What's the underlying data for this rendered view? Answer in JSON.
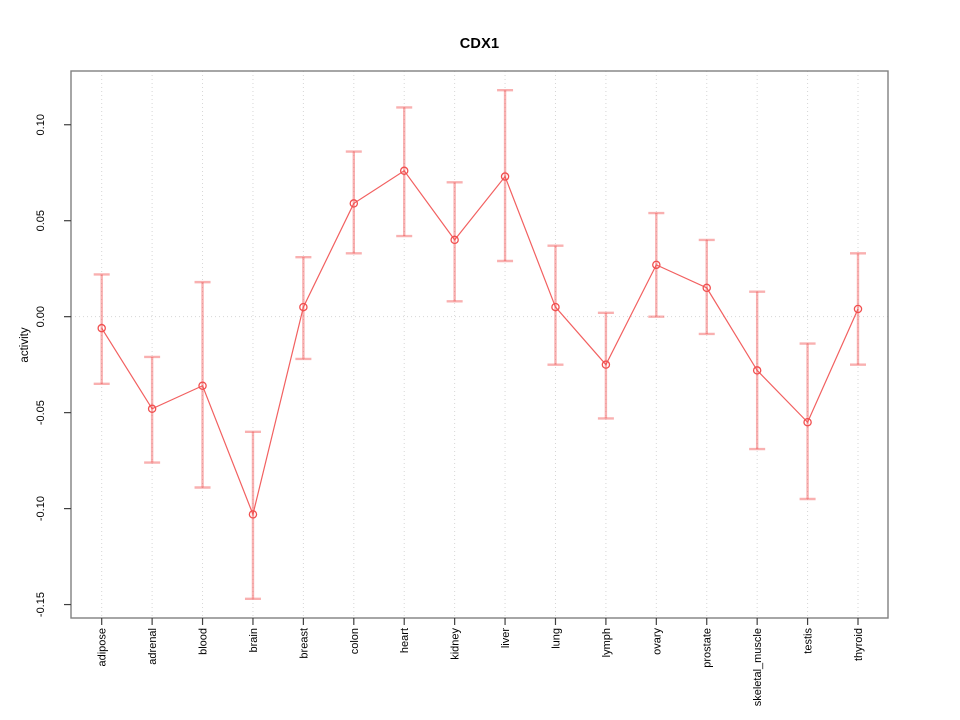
{
  "title": "CDX1",
  "chart_data": {
    "type": "line",
    "error_bars": true,
    "title": "CDX1",
    "xlabel": "",
    "ylabel": "activity",
    "legend": "none",
    "grid": "vertical dotted gridline at each category; horizontal dotted gridline at y=0",
    "categories": [
      "adipose",
      "adrenal",
      "blood",
      "brain",
      "breast",
      "colon",
      "heart",
      "kidney",
      "liver",
      "lung",
      "lymph",
      "ovary",
      "prostate",
      "skeletal_muscle",
      "testis",
      "thyroid"
    ],
    "series": [
      {
        "name": "activity",
        "values": [
          -0.006,
          -0.048,
          -0.036,
          -0.103,
          0.005,
          0.059,
          0.076,
          0.04,
          0.073,
          0.005,
          -0.025,
          0.027,
          0.015,
          -0.028,
          -0.055,
          0.004
        ],
        "lower": [
          -0.035,
          -0.076,
          -0.089,
          -0.147,
          -0.022,
          0.033,
          0.042,
          0.008,
          0.029,
          -0.025,
          -0.053,
          0.0,
          -0.009,
          -0.069,
          -0.095,
          -0.025
        ],
        "upper": [
          0.022,
          -0.021,
          0.018,
          -0.06,
          0.031,
          0.086,
          0.109,
          0.07,
          0.118,
          0.037,
          0.002,
          0.054,
          0.04,
          0.013,
          -0.014,
          0.033
        ]
      }
    ],
    "ytick_values": [
      0.1,
      0.05,
      0.0,
      -0.05,
      -0.1,
      -0.15
    ],
    "ytick_labels": [
      "0.10",
      "0.05",
      "0.00",
      "-0.05",
      "-0.10",
      "-0.15"
    ],
    "ylim": [
      -0.157,
      0.128
    ],
    "colors": {
      "point_line": "#f14f4f",
      "error_bar": "#f14f4f",
      "error_bar_alpha": 0.45,
      "grid": "#d6d6d6",
      "frame": "#808080",
      "tick": "#3f3f3f",
      "text": "#000000",
      "background": "#ffffff"
    }
  }
}
